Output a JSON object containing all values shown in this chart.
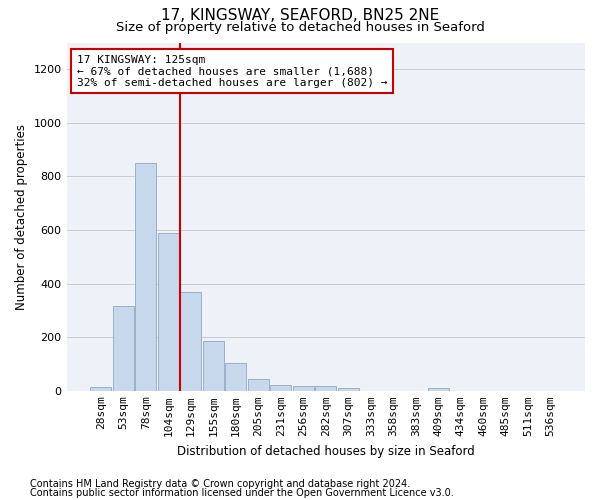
{
  "title": "17, KINGSWAY, SEAFORD, BN25 2NE",
  "subtitle": "Size of property relative to detached houses in Seaford",
  "xlabel": "Distribution of detached houses by size in Seaford",
  "ylabel": "Number of detached properties",
  "footnote1": "Contains HM Land Registry data © Crown copyright and database right 2024.",
  "footnote2": "Contains public sector information licensed under the Open Government Licence v3.0.",
  "annotation_line1": "17 KINGSWAY: 125sqm",
  "annotation_line2": "← 67% of detached houses are smaller (1,688)",
  "annotation_line3": "32% of semi-detached houses are larger (802) →",
  "bar_color": "#c8d8ec",
  "bar_edge_color": "#90a8c4",
  "categories": [
    "28sqm",
    "53sqm",
    "78sqm",
    "104sqm",
    "129sqm",
    "155sqm",
    "180sqm",
    "205sqm",
    "231sqm",
    "256sqm",
    "282sqm",
    "307sqm",
    "333sqm",
    "358sqm",
    "383sqm",
    "409sqm",
    "434sqm",
    "460sqm",
    "485sqm",
    "511sqm",
    "536sqm"
  ],
  "values": [
    15,
    315,
    850,
    590,
    370,
    185,
    105,
    45,
    20,
    18,
    18,
    10,
    0,
    0,
    0,
    12,
    0,
    0,
    0,
    0,
    0
  ],
  "highlight_bar_index": 4,
  "ylim": [
    0,
    1300
  ],
  "yticks": [
    0,
    200,
    400,
    600,
    800,
    1000,
    1200
  ],
  "grid_color": "#cccccc",
  "highlight_color": "#cc0000",
  "background_color": "#eef2f8",
  "title_fontsize": 11,
  "subtitle_fontsize": 9.5,
  "axis_label_fontsize": 8.5,
  "tick_fontsize": 8,
  "footnote_fontsize": 7,
  "annotation_fontsize": 8
}
